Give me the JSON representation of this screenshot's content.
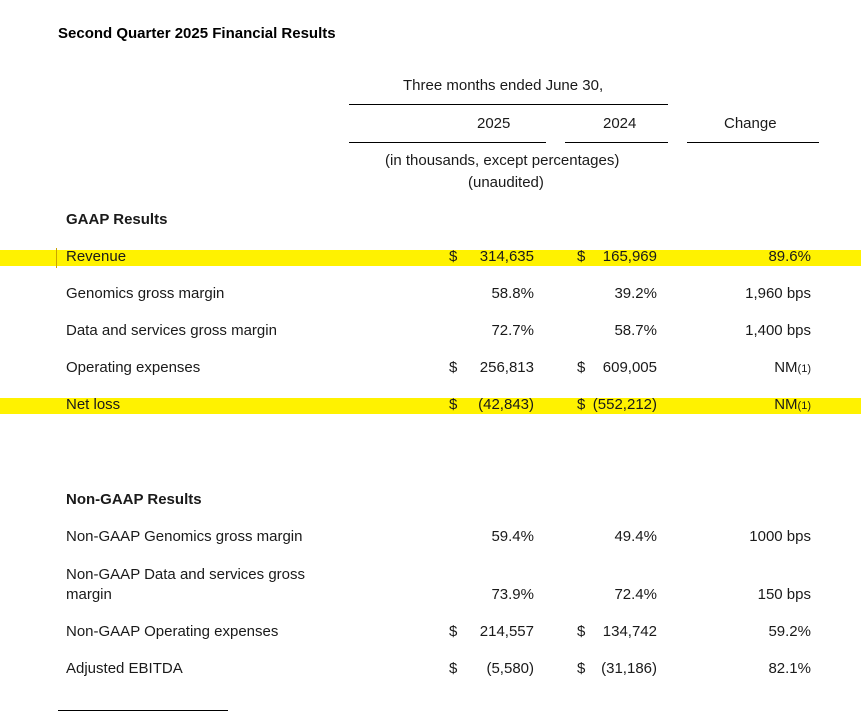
{
  "title": "Second Quarter 2025 Financial Results",
  "header": {
    "period": "Three months ended June 30,",
    "col_2025": "2025",
    "col_2024": "2024",
    "col_change": "Change",
    "units_line1": "(in thousands, except percentages)",
    "units_line2": "(unaudited)"
  },
  "gaap": {
    "heading": "GAAP Results",
    "rows": [
      {
        "label": "Revenue",
        "cur1": "$",
        "v2025": "314,635",
        "cur2": "$",
        "v2024": "165,969",
        "change": "89.6%",
        "change_note": ""
      },
      {
        "label": "Genomics gross margin",
        "cur1": "",
        "v2025": "58.8%",
        "cur2": "",
        "v2024": "39.2%",
        "change": "1,960 bps",
        "change_note": ""
      },
      {
        "label": "Data and services gross margin",
        "cur1": "",
        "v2025": "72.7%",
        "cur2": "",
        "v2024": "58.7%",
        "change": "1,400 bps",
        "change_note": ""
      },
      {
        "label": "Operating expenses",
        "cur1": "$",
        "v2025": "256,813",
        "cur2": "$",
        "v2024": "609,005",
        "change": "NM",
        "change_note": "(1)"
      },
      {
        "label": "Net loss",
        "cur1": "$",
        "v2025": "(42,843)",
        "cur2": "$",
        "v2024": "(552,212)",
        "change": "NM",
        "change_note": "(1)"
      }
    ]
  },
  "non_gaap": {
    "heading": "Non-GAAP Results",
    "rows": [
      {
        "label": "Non-GAAP Genomics gross margin",
        "cur1": "",
        "v2025": "59.4%",
        "cur2": "",
        "v2024": "49.4%",
        "change": "1000 bps"
      },
      {
        "label_line1": "Non-GAAP Data and services gross",
        "label_line2": "margin",
        "cur1": "",
        "v2025": "73.9%",
        "cur2": "",
        "v2024": "72.4%",
        "change": "150 bps"
      },
      {
        "label": "Non-GAAP Operating expenses",
        "cur1": "$",
        "v2025": "214,557",
        "cur2": "$",
        "v2024": "134,742",
        "change": "59.2%"
      },
      {
        "label": "Adjusted EBITDA",
        "cur1": "$",
        "v2025": "(5,580)",
        "cur2": "$",
        "v2024": "(31,186)",
        "change": "82.1%"
      }
    ]
  },
  "highlight_color": "#fff200"
}
